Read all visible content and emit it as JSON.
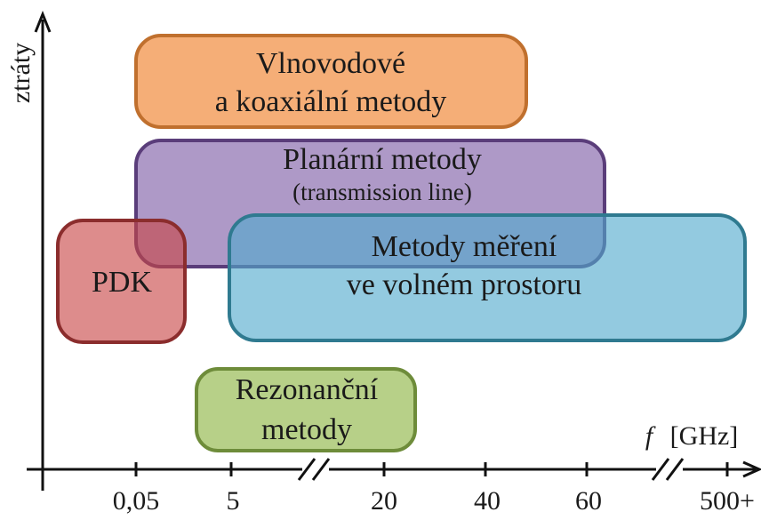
{
  "axes": {
    "y_label": "ztráty",
    "x_label_var": "f",
    "x_label_unit": "[GHz]",
    "x_ticks": [
      "0,05",
      "5",
      "20",
      "40",
      "60",
      "500+"
    ]
  },
  "regions": [
    {
      "lines": [
        "Vlnovodové",
        "a koaxiální metody"
      ]
    },
    {
      "lines": [
        "Planární metody",
        "(transmission line)"
      ]
    },
    {
      "lines": [
        "PDK"
      ]
    },
    {
      "lines": [
        "Metody měření",
        "ve volném prostoru"
      ]
    },
    {
      "lines": [
        "Rezonanční",
        "metody"
      ]
    }
  ]
}
